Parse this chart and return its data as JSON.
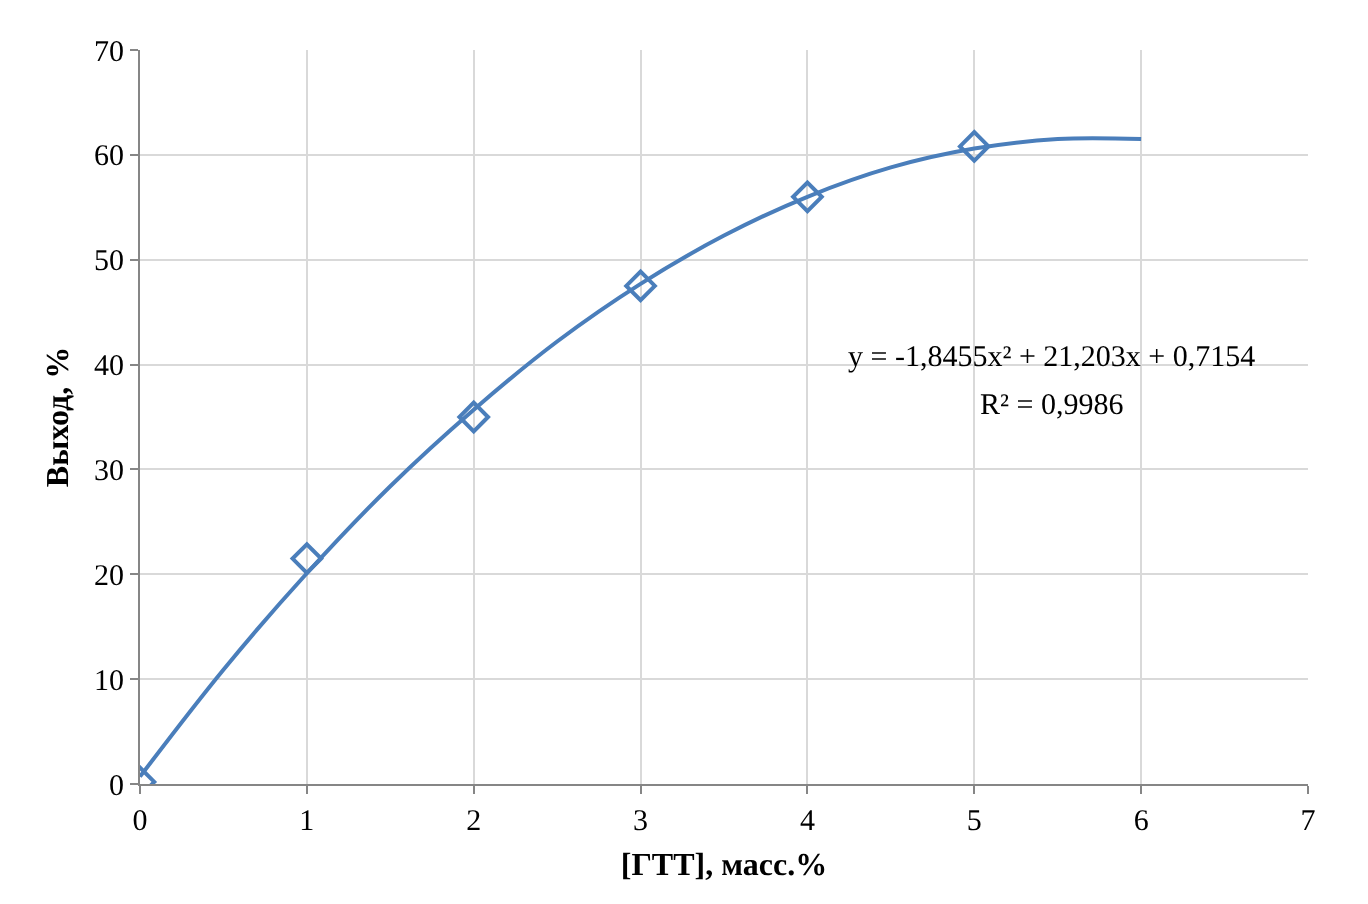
{
  "chart_data": {
    "type": "scatter",
    "xlabel": "[ГТТ], масс.%",
    "ylabel": "Выход, %",
    "xlim": [
      0,
      7
    ],
    "xticks": [
      0,
      1,
      2,
      3,
      4,
      5,
      6,
      7
    ],
    "ylim": [
      0,
      70
    ],
    "yticks": [
      0,
      10,
      20,
      30,
      40,
      50,
      60,
      70
    ],
    "grid": true,
    "series": [
      {
        "type": "line",
        "color": "#4a7ebb",
        "marker": "none",
        "line_style": "solid",
        "x": [
          0,
          0.5,
          1,
          1.5,
          2,
          2.5,
          3,
          3.5,
          4,
          4.5,
          5,
          5.5,
          6
        ],
        "values": [
          0.7,
          10.9,
          20.1,
          28.4,
          35.7,
          42.2,
          47.7,
          52.3,
          56.0,
          58.8,
          60.6,
          61.5,
          61.5
        ]
      },
      {
        "color": "#4a7ebb",
        "marker": "diamond",
        "x": [
          0,
          1,
          2,
          3,
          4,
          5
        ],
        "values": [
          0.2,
          21.5,
          35,
          47.5,
          56,
          60.8
        ]
      }
    ],
    "annotations": [
      "y = -1,8455x² + 21,203x + 0,7154",
      "R² = 0,9986"
    ]
  }
}
